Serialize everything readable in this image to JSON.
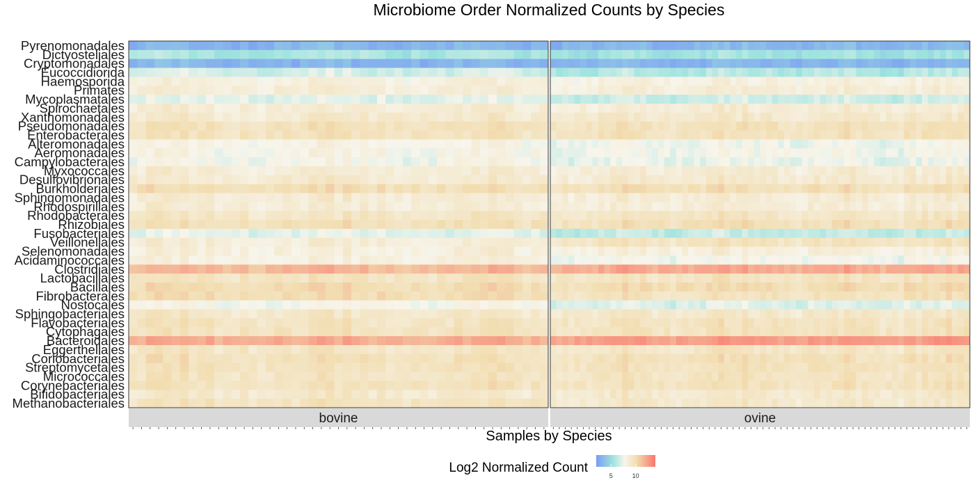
{
  "chart_data": {
    "type": "heatmap",
    "title": "Microbiome Order Normalized Counts by Species",
    "xlabel": "Samples by Species",
    "ylabel": "",
    "rows": [
      "Pyrenomonadales",
      "Dictyosteliales",
      "Cryptomonadales",
      "Eucoccidiorida",
      "Haemosporida",
      "Primates",
      "Mycoplasmatales",
      "Spirochaetales",
      "Xanthomonadales",
      "Pseudomonadales",
      "Enterobacterales",
      "Alteromonadales",
      "Aeromonadales",
      "Campylobacterales",
      "Myxococcales",
      "Desulfovibrionales",
      "Burkholderiales",
      "Sphingomonadales",
      "Rhodospirillales",
      "Rhodobacterales",
      "Rhizobiales",
      "Fusobacteriales",
      "Veillonellales",
      "Selenomonadales",
      "Acidaminococcales",
      "Clostridiales",
      "Lactobacillales",
      "Bacillales",
      "Fibrobacterales",
      "Nostocales",
      "Sphingobacteriales",
      "Flavobacteriales",
      "Cytophagales",
      "Bacteroidales",
      "Eggerthellales",
      "Coriobacteriales",
      "Streptomycetales",
      "Micrococcales",
      "Corynebacteriales",
      "Bifidobacteriales",
      "Methanobacteriales"
    ],
    "row_mean_log2": [
      3.3,
      5.6,
      3.2,
      6.4,
      8.3,
      8.6,
      6.9,
      8.7,
      9.0,
      9.7,
      9.6,
      7.8,
      7.9,
      7.6,
      8.7,
      8.9,
      9.9,
      8.7,
      8.6,
      9.3,
      9.8,
      6.8,
      9.0,
      8.4,
      8.0,
      11.8,
      9.5,
      10.1,
      9.8,
      7.5,
      9.1,
      9.5,
      9.6,
      12.3,
      9.3,
      9.7,
      9.6,
      9.4,
      9.6,
      9.0,
      9.3
    ],
    "facets": [
      {
        "name": "bovine",
        "n_samples": 49,
        "row_offset_log2": [
          0.0,
          0.2,
          0.0,
          0.4,
          0.0,
          0.0,
          0.3,
          0.0,
          0.0,
          0.0,
          0.0,
          0.2,
          0.1,
          0.2,
          0.0,
          0.0,
          0.0,
          0.0,
          0.0,
          0.0,
          0.0,
          0.4,
          -0.5,
          0.0,
          0.3,
          -0.3,
          0.0,
          0.0,
          0.2,
          0.4,
          0.0,
          0.0,
          0.0,
          -0.3,
          0.0,
          0.0,
          0.0,
          0.0,
          0.0,
          0.0,
          0.2
        ]
      },
      {
        "name": "ovine",
        "n_samples": 70,
        "row_offset_log2": [
          0.0,
          -0.2,
          0.0,
          -0.4,
          0.0,
          0.0,
          -0.3,
          0.0,
          0.0,
          0.0,
          0.0,
          -0.2,
          -0.1,
          -0.2,
          0.0,
          0.0,
          0.0,
          0.0,
          0.0,
          0.0,
          0.0,
          -0.4,
          0.5,
          0.0,
          -0.3,
          0.3,
          0.0,
          0.0,
          -0.2,
          -0.4,
          0.0,
          0.0,
          0.0,
          0.3,
          0.0,
          0.0,
          0.0,
          0.0,
          0.0,
          0.0,
          -0.2
        ]
      }
    ],
    "color_scale": {
      "domain": [
        2,
        14
      ],
      "stops": [
        "#7b9cf2",
        "#9ee3df",
        "#f7f5ec",
        "#f2ddb0",
        "#f9766e"
      ],
      "stop_positions": [
        0,
        0.28,
        0.48,
        0.68,
        1
      ]
    },
    "legend": {
      "title": "Log2 Normalized Count",
      "position": "bottom",
      "ticks": [
        "5",
        "10"
      ],
      "tick_values": [
        5,
        10
      ]
    },
    "grid": false
  },
  "colors": {
    "strip_background": "#d9d9d9",
    "panel_border": "#333333"
  }
}
